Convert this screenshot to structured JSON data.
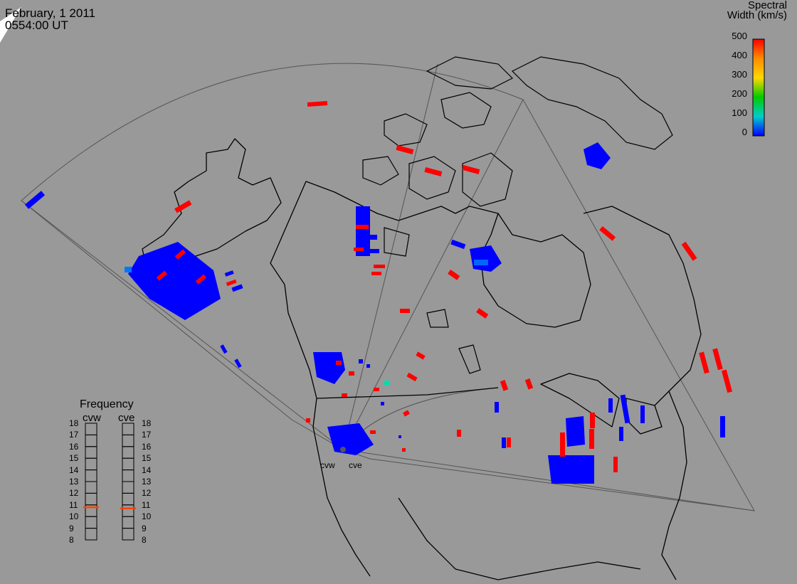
{
  "header": {
    "date": "February, 1 2011",
    "time": "0554:00 UT"
  },
  "colorbar": {
    "title_line1": "Spectral",
    "title_line2": "Width (km/s)",
    "ticks": [
      "500",
      "400",
      "300",
      "200",
      "100",
      "0"
    ],
    "colors": [
      "#ff0000",
      "#ff8c00",
      "#ffd700",
      "#00cc00",
      "#00cccc",
      "#0000ff"
    ]
  },
  "frequency": {
    "title": "Frequency",
    "radars": [
      "cvw",
      "cve"
    ],
    "ticks": [
      "18",
      "17",
      "16",
      "15",
      "14",
      "13",
      "12",
      "11",
      "10",
      "9",
      "8"
    ],
    "values": [
      10.8,
      10.7
    ],
    "marker_color": "#ff4400"
  },
  "sites": {
    "west": "cvw",
    "east": "cve"
  },
  "colors": {
    "background": "#999999",
    "coast": "#000000",
    "low_width": "#0000ff",
    "high_width": "#ff0000"
  }
}
